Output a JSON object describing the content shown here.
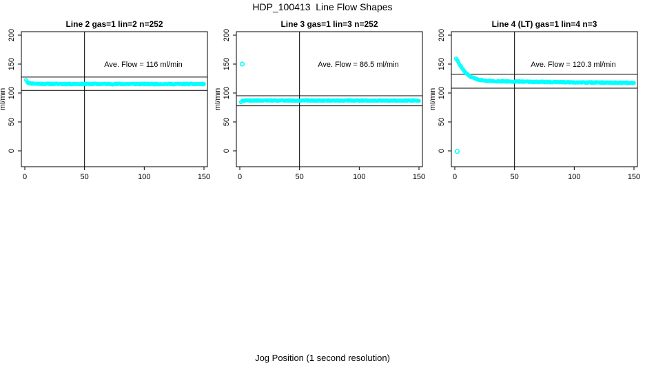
{
  "title": "HDP_100413  Line Flow Shapes",
  "xlabel": "Jog Position (1 second resolution)",
  "colors": {
    "points": "#00ffff",
    "axis": "#000000",
    "background": "#ffffff"
  },
  "chart_data": [
    {
      "type": "scatter",
      "title": "Line 2 gas=1 lin=2 n=252",
      "ylabel": "ml/min",
      "annotation": "Ave. Flow =  116  ml/min",
      "ave_flow": 116,
      "xlim": [
        0,
        150
      ],
      "ylim": [
        0,
        200
      ],
      "xticks": [
        0,
        50,
        100,
        150
      ],
      "yticks": [
        0,
        50,
        100,
        150,
        200
      ],
      "vline_x": 50,
      "hlines": [
        127.6,
        104.4
      ],
      "profile": [
        [
          1,
          123
        ],
        [
          2,
          119
        ],
        [
          3,
          117.5
        ],
        [
          5,
          116.5
        ],
        [
          10,
          116
        ],
        [
          20,
          115.7
        ],
        [
          150,
          115.5
        ]
      ],
      "outliers": [],
      "x_start": 1,
      "n_points": 250,
      "jitter": 0.8,
      "seed": 11
    },
    {
      "type": "scatter",
      "title": "Line 3 gas=1 lin=3 n=252",
      "ylabel": "ml/min",
      "annotation": "Ave. Flow =  86.5  ml/min",
      "ave_flow": 86.5,
      "xlim": [
        0,
        150
      ],
      "ylim": [
        0,
        200
      ],
      "xticks": [
        0,
        50,
        100,
        150
      ],
      "yticks": [
        0,
        50,
        100,
        150,
        200
      ],
      "vline_x": 50,
      "hlines": [
        95.2,
        77.9
      ],
      "profile": [
        [
          1,
          84.5
        ],
        [
          2,
          86.5
        ],
        [
          4,
          87
        ],
        [
          150,
          87
        ]
      ],
      "outliers": [
        [
          2,
          150
        ]
      ],
      "x_start": 1,
      "n_points": 250,
      "jitter": 0.7,
      "seed": 22
    },
    {
      "type": "scatter",
      "title": "Line 4 (LT) gas=1 lin=4 n=3",
      "ylabel": "ml/min",
      "annotation": "Ave. Flow =  120.3  ml/min",
      "ave_flow": 120.3,
      "xlim": [
        0,
        150
      ],
      "ylim": [
        0,
        200
      ],
      "xticks": [
        0,
        50,
        100,
        150
      ],
      "yticks": [
        0,
        50,
        100,
        150,
        200
      ],
      "vline_x": 50,
      "hlines": [
        132.3,
        108.3
      ],
      "profile": [
        [
          1,
          160
        ],
        [
          2,
          157
        ],
        [
          3,
          153
        ],
        [
          4,
          149
        ],
        [
          6,
          143
        ],
        [
          8,
          137.5
        ],
        [
          10,
          133
        ],
        [
          13,
          128.5
        ],
        [
          16,
          125.5
        ],
        [
          20,
          123
        ],
        [
          25,
          121.5
        ],
        [
          35,
          120.3
        ],
        [
          60,
          119.5
        ],
        [
          100,
          118.5
        ],
        [
          150,
          117.5
        ]
      ],
      "outliers": [
        [
          2,
          -1
        ]
      ],
      "x_start": 1,
      "n_points": 250,
      "jitter": 0.8,
      "seed": 33
    }
  ]
}
